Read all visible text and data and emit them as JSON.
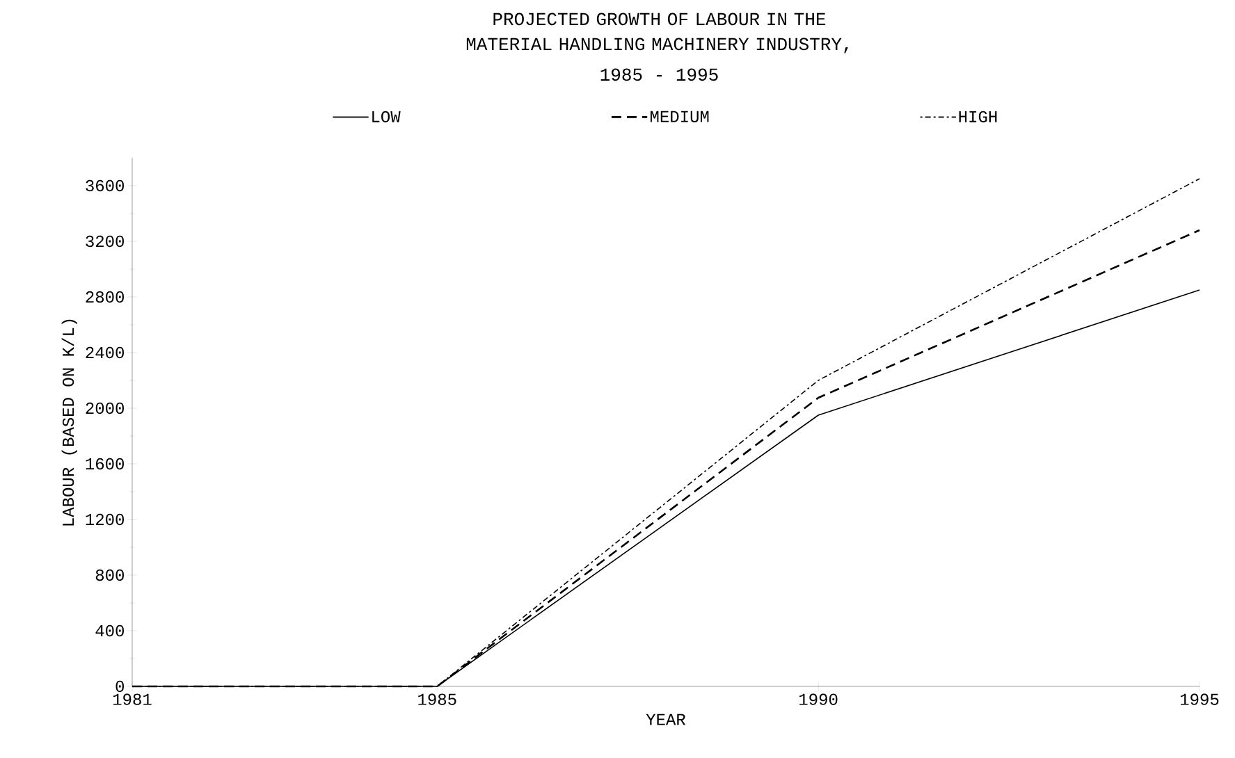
{
  "chart_data": {
    "type": "line",
    "title": "PROJECTED GROWTH OF LABOUR IN THE MATERIAL HANDLING MACHINERY INDUSTRY,",
    "subtitle": "1985 - 1995",
    "xlabel": "YEAR",
    "ylabel": "LABOUR (BASED ON K/L)",
    "x": [
      1981,
      1985,
      1990,
      1995
    ],
    "series": [
      {
        "name": "LOW",
        "color": "#000000",
        "line_style": "solid",
        "values": [
          0,
          0,
          1950,
          2850
        ]
      },
      {
        "name": "MEDIUM",
        "color": "#000000",
        "line_style": "dashed",
        "values": [
          0,
          0,
          2075,
          3280
        ]
      },
      {
        "name": "HIGH",
        "color": "#000000",
        "line_style": "dotted",
        "values": [
          0,
          0,
          2200,
          3650
        ]
      }
    ],
    "xlim": [
      1981,
      1995
    ],
    "xticks": [
      1981,
      1985,
      1990,
      1995
    ],
    "ylim": [
      0,
      3800
    ],
    "yticks": [
      0,
      400,
      800,
      1200,
      1600,
      2000,
      2400,
      2800,
      3200,
      3600
    ],
    "grid": false,
    "legend": "top",
    "marker": "none"
  }
}
